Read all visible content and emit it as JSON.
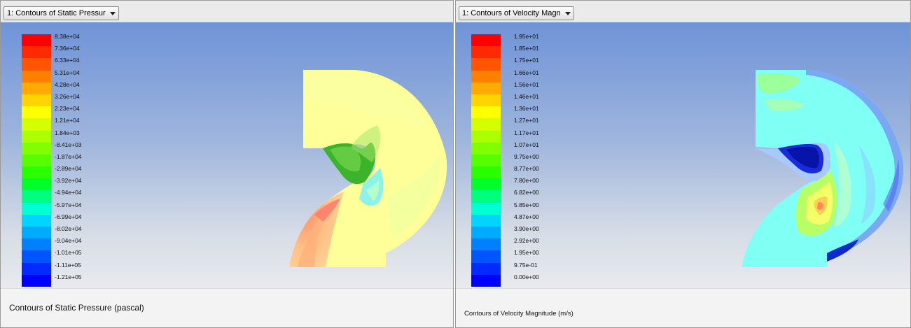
{
  "left_panel": {
    "dropdown_label": "1: Contours of Static Pressur",
    "caption": "Contours of Static Pressure (pascal)",
    "colorbar": {
      "colors": [
        "#ff0000",
        "#ff2a00",
        "#ff5500",
        "#ff7f00",
        "#ffaa00",
        "#ffd400",
        "#ffff00",
        "#d4ff00",
        "#aaff00",
        "#7fff00",
        "#55ff00",
        "#2aff00",
        "#00ff2a",
        "#00ff7f",
        "#00ffd4",
        "#00d4ff",
        "#00aaff",
        "#007fff",
        "#0055ff",
        "#002aff",
        "#0000ff"
      ],
      "labels": [
        "8.38e+04",
        "7.36e+04",
        "6.33e+04",
        "5.31e+04",
        "4.28e+04",
        "3.26e+04",
        "2.23e+04",
        "1.21e+04",
        "1.84e+03",
        "-8.41e+03",
        "-1.87e+04",
        "-2.89e+04",
        "-3.92e+04",
        "-4.94e+04",
        "-5.97e+04",
        "-6.99e+04",
        "-8.02e+04",
        "-9.04e+04",
        "-1.01e+05",
        "-1.11e+05",
        "-1.21e+05"
      ]
    }
  },
  "right_panel": {
    "dropdown_label": "1: Contours of Velocity Magn",
    "caption": "Contours of Velocity Magnitude (m/s)",
    "colorbar": {
      "colors": [
        "#ff0000",
        "#ff2a00",
        "#ff5500",
        "#ff7f00",
        "#ffaa00",
        "#ffd400",
        "#ffff00",
        "#d4ff00",
        "#aaff00",
        "#7fff00",
        "#55ff00",
        "#2aff00",
        "#00ff2a",
        "#00ff7f",
        "#00ffd4",
        "#00d4ff",
        "#00aaff",
        "#007fff",
        "#0055ff",
        "#002aff",
        "#0000ff"
      ],
      "labels": [
        "1.95e+01",
        "1.85e+01",
        "1.75e+01",
        "1.66e+01",
        "1.56e+01",
        "1.46e+01",
        "1.36e+01",
        "1.27e+01",
        "1.17e+01",
        "1.07e+01",
        "9.75e+00",
        "8.77e+00",
        "7.80e+00",
        "6.82e+00",
        "5.85e+00",
        "4.87e+00",
        "3.90e+00",
        "2.92e+00",
        "1.95e+00",
        "9.75e-01",
        "0.00e+00"
      ]
    }
  },
  "icons": {
    "dropdown_arrow": "chevron-down-icon"
  }
}
